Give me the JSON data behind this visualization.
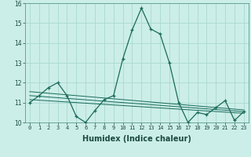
{
  "title": "",
  "xlabel": "Humidex (Indice chaleur)",
  "background_color": "#cceee8",
  "grid_color": "#aad8d2",
  "line_color": "#1a6b5a",
  "x_values": [
    0,
    1,
    2,
    3,
    4,
    5,
    6,
    7,
    8,
    9,
    10,
    11,
    12,
    13,
    14,
    15,
    16,
    17,
    18,
    19,
    20,
    21,
    22,
    23
  ],
  "curve1_y": [
    11.0,
    11.35,
    11.75,
    12.0,
    11.35,
    10.3,
    10.0,
    10.6,
    11.15,
    11.35,
    13.2,
    14.65,
    15.75,
    14.7,
    14.45,
    13.0,
    11.0,
    10.0,
    10.5,
    10.4,
    10.75,
    11.1,
    10.1,
    10.55
  ],
  "line1_y": [
    11.55,
    11.51,
    11.47,
    11.43,
    11.39,
    11.35,
    11.31,
    11.27,
    11.23,
    11.19,
    11.15,
    11.11,
    11.07,
    11.03,
    10.99,
    10.95,
    10.91,
    10.87,
    10.83,
    10.79,
    10.75,
    10.71,
    10.67,
    10.63
  ],
  "line2_y": [
    11.35,
    11.315,
    11.28,
    11.245,
    11.21,
    11.175,
    11.14,
    11.105,
    11.07,
    11.035,
    11.0,
    10.965,
    10.93,
    10.895,
    10.86,
    10.825,
    10.79,
    10.755,
    10.72,
    10.685,
    10.65,
    10.615,
    10.58,
    10.545
  ],
  "line3_y": [
    11.15,
    11.12,
    11.09,
    11.06,
    11.03,
    11.0,
    10.97,
    10.94,
    10.91,
    10.88,
    10.85,
    10.82,
    10.79,
    10.76,
    10.73,
    10.7,
    10.67,
    10.64,
    10.61,
    10.58,
    10.55,
    10.52,
    10.49,
    10.46
  ],
  "ylim": [
    10,
    16
  ],
  "xlim": [
    -0.5,
    23.5
  ],
  "yticks": [
    10,
    11,
    12,
    13,
    14,
    15,
    16
  ],
  "xticks": [
    0,
    1,
    2,
    3,
    4,
    5,
    6,
    7,
    8,
    9,
    10,
    11,
    12,
    13,
    14,
    15,
    16,
    17,
    18,
    19,
    20,
    21,
    22,
    23
  ],
  "xlabel_fontsize": 7,
  "tick_fontsize": 5,
  "ylabel_fontsize": 6
}
